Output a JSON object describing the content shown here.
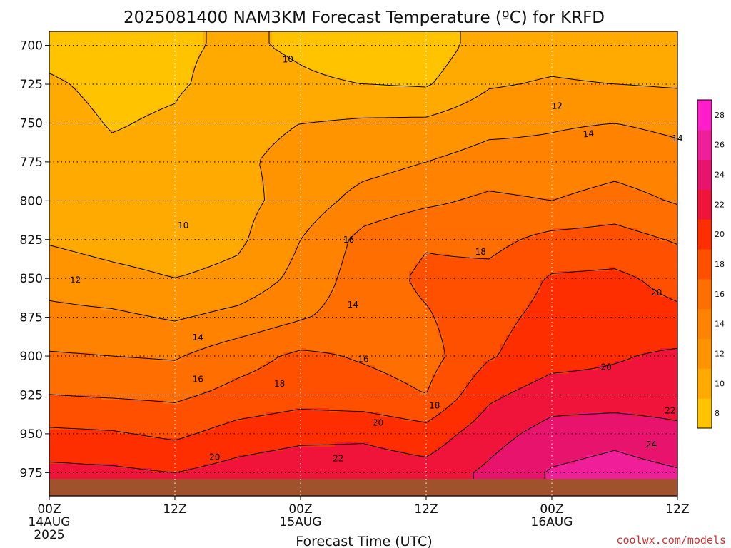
{
  "chart_data": {
    "type": "heatmap",
    "title": "2025081400 NAM3KM Forecast Temperature (ºC) for KRFD",
    "xlabel": "Forecast Time (UTC)",
    "ylabel": "",
    "credit": "coolwx.com/models",
    "x_ticks": [
      {
        "hour": 0,
        "label": "00Z",
        "sub1": "14AUG",
        "sub2": "2025"
      },
      {
        "hour": 12,
        "label": "12Z",
        "sub1": "",
        "sub2": ""
      },
      {
        "hour": 24,
        "label": "00Z",
        "sub1": "15AUG",
        "sub2": ""
      },
      {
        "hour": 36,
        "label": "12Z",
        "sub1": "",
        "sub2": ""
      },
      {
        "hour": 48,
        "label": "00Z",
        "sub1": "16AUG",
        "sub2": ""
      },
      {
        "hour": 60,
        "label": "12Z",
        "sub1": "",
        "sub2": ""
      }
    ],
    "xlim": [
      0,
      60
    ],
    "y_ticks": [
      700,
      725,
      750,
      775,
      800,
      825,
      850,
      875,
      900,
      925,
      950,
      975
    ],
    "ylim": [
      691,
      990
    ],
    "y_reversed": true,
    "grid": true,
    "colorbar": {
      "levels": [
        8,
        10,
        12,
        14,
        16,
        18,
        20,
        22,
        24,
        26,
        28
      ],
      "colors": [
        "#ffc300",
        "#ffaa00",
        "#ff9400",
        "#ff8200",
        "#ff6e00",
        "#ff5000",
        "#ff2e00",
        "#f0143a",
        "#e8136c",
        "#f01e98",
        "#ff1ec8"
      ]
    },
    "hours": [
      0,
      6,
      12,
      18,
      24,
      30,
      36,
      42,
      48,
      54,
      60
    ],
    "levels_hpa": [
      700,
      725,
      750,
      775,
      800,
      825,
      850,
      875,
      900,
      925,
      950,
      975
    ],
    "temperature": [
      [
        9.5,
        9.0,
        9.8,
        10.2,
        9.8,
        9.3,
        8.8,
        11.0,
        11.2,
        10.8,
        10.5
      ],
      [
        10.2,
        9.6,
        9.8,
        10.6,
        10.2,
        10.0,
        9.8,
        11.8,
        12.2,
        12.0,
        11.8
      ],
      [
        10.6,
        9.9,
        10.2,
        11.6,
        12.0,
        12.3,
        12.4,
        13.4,
        13.8,
        14.0,
        13.6
      ],
      [
        10.9,
        10.3,
        10.4,
        11.8,
        12.4,
        13.2,
        14.0,
        14.8,
        14.6,
        15.2,
        14.6
      ],
      [
        11.1,
        10.6,
        10.2,
        11.4,
        12.8,
        14.8,
        15.6,
        16.4,
        16.0,
        16.8,
        15.8
      ],
      [
        11.8,
        11.2,
        10.8,
        11.6,
        14.0,
        16.6,
        17.8,
        17.4,
        18.6,
        18.8,
        17.8
      ],
      [
        13.2,
        12.6,
        12.0,
        12.6,
        14.6,
        17.0,
        18.4,
        18.6,
        20.2,
        20.4,
        19.4
      ],
      [
        14.6,
        14.4,
        13.8,
        14.6,
        15.8,
        17.0,
        17.8,
        19.4,
        20.6,
        20.8,
        20.4
      ],
      [
        16.2,
        16.0,
        15.8,
        17.2,
        18.4,
        17.8,
        17.2,
        19.8,
        21.2,
        21.8,
        22.4
      ],
      [
        18.0,
        17.8,
        17.6,
        18.6,
        19.2,
        18.8,
        18.0,
        21.6,
        23.0,
        22.8,
        22.8
      ],
      [
        20.4,
        20.2,
        19.6,
        20.8,
        21.4,
        21.6,
        20.8,
        23.2,
        24.8,
        25.4,
        24.6
      ],
      [
        22.6,
        22.4,
        22.0,
        22.8,
        23.4,
        23.2,
        22.8,
        24.4,
        26.2,
        26.8,
        26.2
      ]
    ],
    "contour_labels": [
      {
        "value": "10",
        "hour": 22.8,
        "level": 709,
        "angle": -2
      },
      {
        "value": "10",
        "hour": 12.8,
        "level": 816,
        "angle": 0
      },
      {
        "value": "12",
        "hour": 48.5,
        "level": 739,
        "angle": -4
      },
      {
        "value": "12",
        "hour": 2.5,
        "level": 851,
        "angle": -2
      },
      {
        "value": "14",
        "hour": 51.5,
        "level": 757,
        "angle": -6
      },
      {
        "value": "14",
        "hour": 60,
        "level": 760,
        "angle": 0
      },
      {
        "value": "14",
        "hour": 14.2,
        "level": 888,
        "angle": 3
      },
      {
        "value": "14",
        "hour": 29,
        "level": 867,
        "angle": 0
      },
      {
        "value": "16",
        "hour": 28.6,
        "level": 825,
        "angle": 0
      },
      {
        "value": "16",
        "hour": 14.2,
        "level": 915,
        "angle": 0
      },
      {
        "value": "16",
        "hour": 30.0,
        "level": 902,
        "angle": 0
      },
      {
        "value": "18",
        "hour": 41.2,
        "level": 833,
        "angle": 0
      },
      {
        "value": "18",
        "hour": 22.0,
        "level": 918,
        "angle": 0
      },
      {
        "value": "18",
        "hour": 36.8,
        "level": 932,
        "angle": 0
      },
      {
        "value": "20",
        "hour": 58.0,
        "level": 859,
        "angle": 0
      },
      {
        "value": "20",
        "hour": 53.2,
        "level": 907,
        "angle": 0
      },
      {
        "value": "20",
        "hour": 31.4,
        "level": 943,
        "angle": 0
      },
      {
        "value": "20",
        "hour": 15.8,
        "level": 965,
        "angle": 0
      },
      {
        "value": "22",
        "hour": 59.3,
        "level": 935,
        "angle": 0
      },
      {
        "value": "22",
        "hour": 27.6,
        "level": 966,
        "angle": 0
      },
      {
        "value": "24",
        "hour": 57.5,
        "level": 957,
        "angle": 0
      }
    ],
    "ground": {
      "level": 979,
      "color": "#a0522d"
    }
  }
}
